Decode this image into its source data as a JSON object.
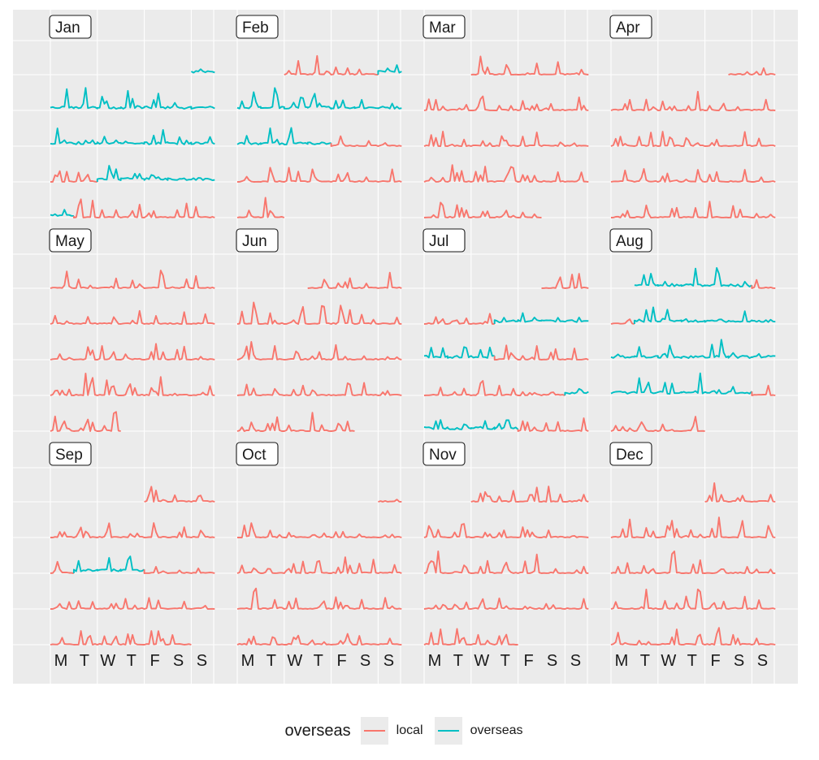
{
  "chart_data": {
    "type": "line",
    "title": "",
    "months": [
      "Jan",
      "Feb",
      "Mar",
      "Apr",
      "May",
      "Jun",
      "Jul",
      "Aug",
      "Sep",
      "Oct",
      "Nov",
      "Dec"
    ],
    "weekday_labels": [
      "M",
      "T",
      "W",
      "T",
      "F",
      "S",
      "S"
    ],
    "legend": {
      "title": "overseas",
      "entries": [
        "local",
        "overseas"
      ]
    },
    "colors": {
      "local": "#F8766D",
      "overseas": "#00BFC4",
      "panel_bg": "#EBEBEB",
      "grid": "#FFFFFF"
    },
    "grid": true,
    "year_first_weekday": 6,
    "overseas_days": [
      [
        1,
        1,
        15
      ],
      [
        1,
        2,
        8
      ],
      [
        1,
        18,
        23
      ],
      [
        2,
        5,
        16
      ],
      [
        7,
        6,
        12
      ],
      [
        7,
        23,
        27
      ],
      [
        8,
        1,
        5
      ],
      [
        8,
        8,
        26
      ],
      [
        9,
        12,
        14
      ]
    ],
    "series": [
      {
        "name": "local",
        "values": "hourly trip counts, red lines"
      },
      {
        "name": "overseas",
        "values": "hourly trip counts, teal lines"
      }
    ]
  }
}
